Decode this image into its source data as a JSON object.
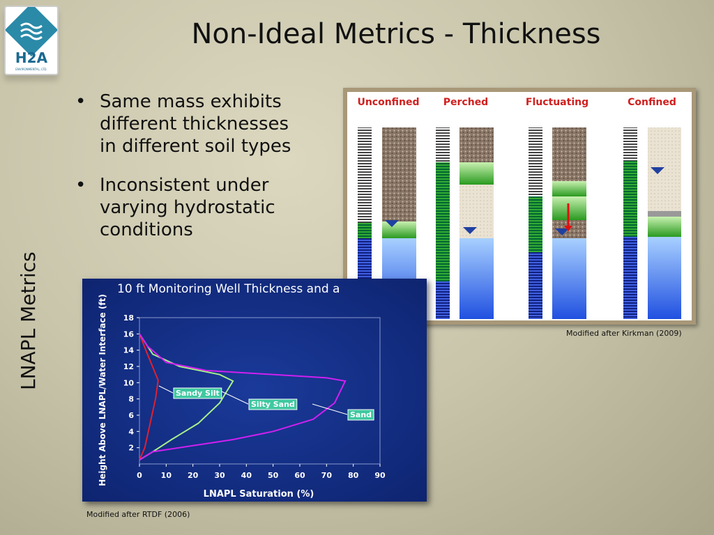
{
  "header": {
    "title": "Non-Ideal Metrics - Thickness"
  },
  "side_label": "LNAPL Metrics",
  "logo": {
    "name": "H2A",
    "subtitle": "ENVIRONMENTAL, LTD."
  },
  "bullets": [
    "Same mass exhibits different thicknesses in different soil types",
    "Inconsistent under varying hydrostatic conditions"
  ],
  "diagram": {
    "labels": [
      "Unconfined",
      "Perched",
      "Fluctuating",
      "Confined"
    ],
    "caption": "Modified after Kirkman (2009)"
  },
  "chart_caption": "Modified after RTDF (2006)",
  "chart_data": {
    "type": "line",
    "title": "10 ft Monitoring Well Thickness and a",
    "x_label": "LNAPL Saturation (%)",
    "y_label": "Height Above LNAPL/Water Interface (ft)",
    "xlim": [
      0,
      90
    ],
    "xticks": [
      0,
      10,
      20,
      30,
      40,
      50,
      60,
      70,
      80,
      90
    ],
    "ylim": [
      0,
      18
    ],
    "yticks": [
      2,
      4,
      6,
      8,
      10,
      12,
      14,
      16,
      18
    ],
    "series": [
      {
        "name": "Sandy Silt",
        "color": "#e02030",
        "x": [
          0,
          3,
          7,
          6,
          4,
          2,
          0
        ],
        "values": [
          16,
          13.5,
          10.3,
          8,
          5,
          2,
          0.5
        ]
      },
      {
        "name": "Silty Sand",
        "color": "#a8f08a",
        "x": [
          0,
          5,
          15,
          30,
          35,
          30,
          22,
          12,
          5,
          0
        ],
        "values": [
          16,
          13.5,
          12,
          11,
          10.2,
          7.5,
          5,
          3,
          1.5,
          0.5
        ]
      },
      {
        "name": "Sand",
        "color": "#d020f0",
        "x": [
          0,
          3,
          10,
          25,
          50,
          70,
          77,
          73,
          65,
          50,
          35,
          15,
          5,
          0
        ],
        "values": [
          16,
          14.5,
          12.5,
          11.5,
          11,
          10.6,
          10.2,
          7.5,
          5.5,
          4,
          3,
          2,
          1.5,
          0.5
        ]
      }
    ]
  }
}
